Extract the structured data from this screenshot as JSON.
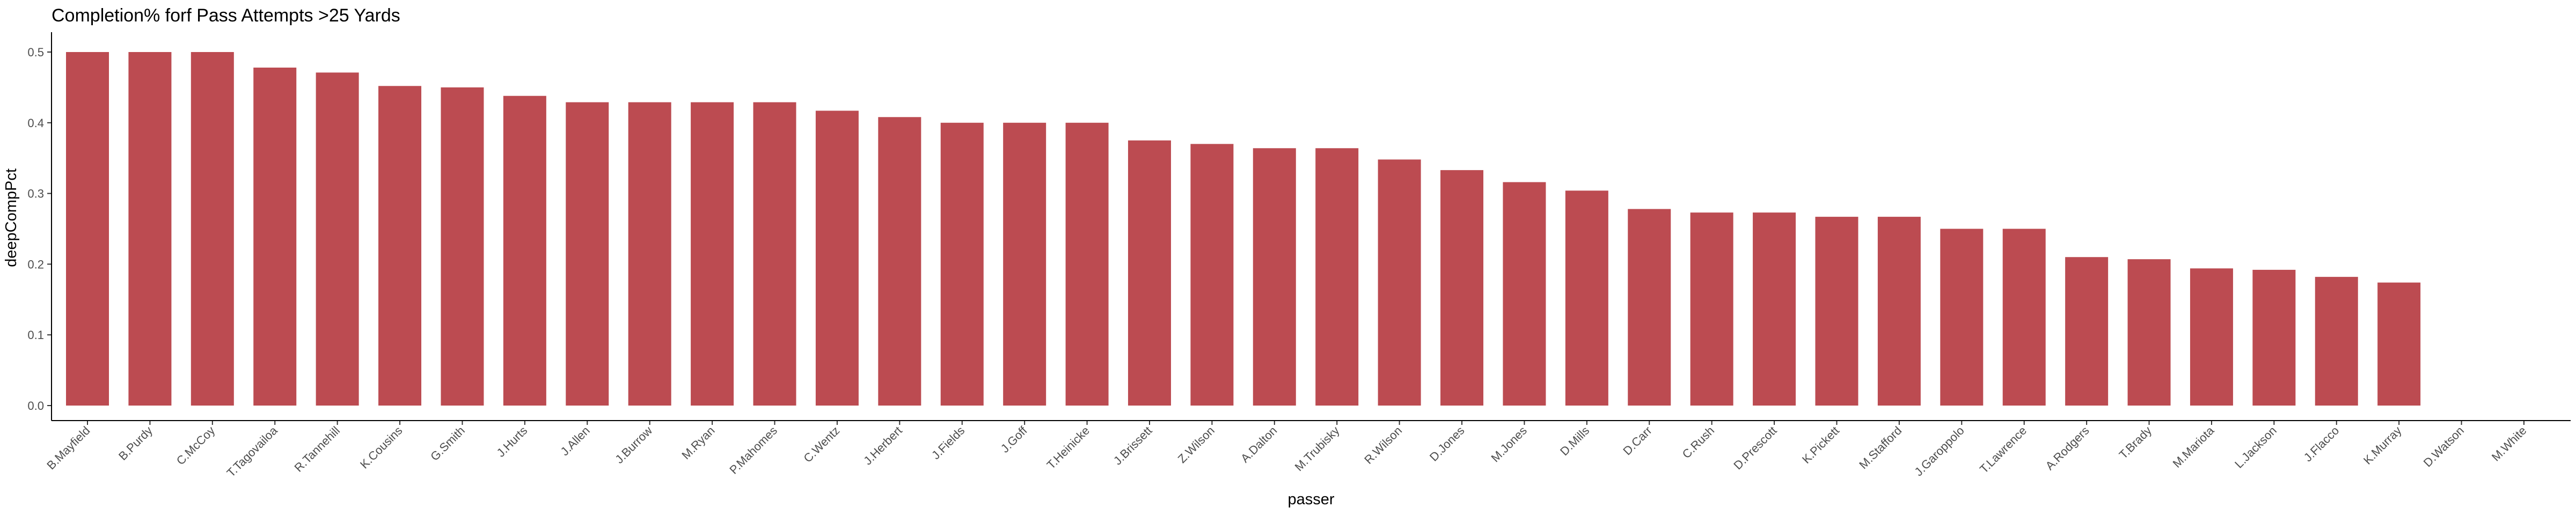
{
  "chart_data": {
    "type": "bar",
    "title": "Completion% forf Pass Attempts >25 Yards",
    "xlabel": "passer",
    "ylabel": "deepCompPct",
    "ylim": [
      0,
      0.5
    ],
    "yticks": [
      "0.0",
      "0.1",
      "0.2",
      "0.3",
      "0.4",
      "0.5"
    ],
    "grid": false,
    "legend": "none",
    "bar_color": "#bc4b51",
    "categories": [
      "B.Mayfield",
      "B.Purdy",
      "C.McCoy",
      "T.Tagovailoa",
      "R.Tannehill",
      "K.Cousins",
      "G.Smith",
      "J.Hurts",
      "J.Allen",
      "J.Burrow",
      "M.Ryan",
      "P.Mahomes",
      "C.Wentz",
      "J.Herbert",
      "J.Fields",
      "J.Goff",
      "T.Heinicke",
      "J.Brissett",
      "Z.Wilson",
      "A.Dalton",
      "M.Trubisky",
      "R.Wilson",
      "D.Jones",
      "M.Jones",
      "D.Mills",
      "D.Carr",
      "C.Rush",
      "D.Prescott",
      "K.Pickett",
      "M.Stafford",
      "J.Garoppolo",
      "T.Lawrence",
      "A.Rodgers",
      "T.Brady",
      "M.Mariota",
      "L.Jackson",
      "J.Flacco",
      "K.Murray",
      "D.Watson",
      "M.White"
    ],
    "values": [
      0.5,
      0.5,
      0.5,
      0.478,
      0.471,
      0.452,
      0.45,
      0.438,
      0.429,
      0.429,
      0.429,
      0.429,
      0.417,
      0.408,
      0.4,
      0.4,
      0.4,
      0.375,
      0.37,
      0.364,
      0.364,
      0.348,
      0.333,
      0.316,
      0.304,
      0.278,
      0.273,
      0.273,
      0.267,
      0.267,
      0.25,
      0.25,
      0.21,
      0.207,
      0.194,
      0.192,
      0.182,
      0.174,
      0,
      0
    ]
  }
}
